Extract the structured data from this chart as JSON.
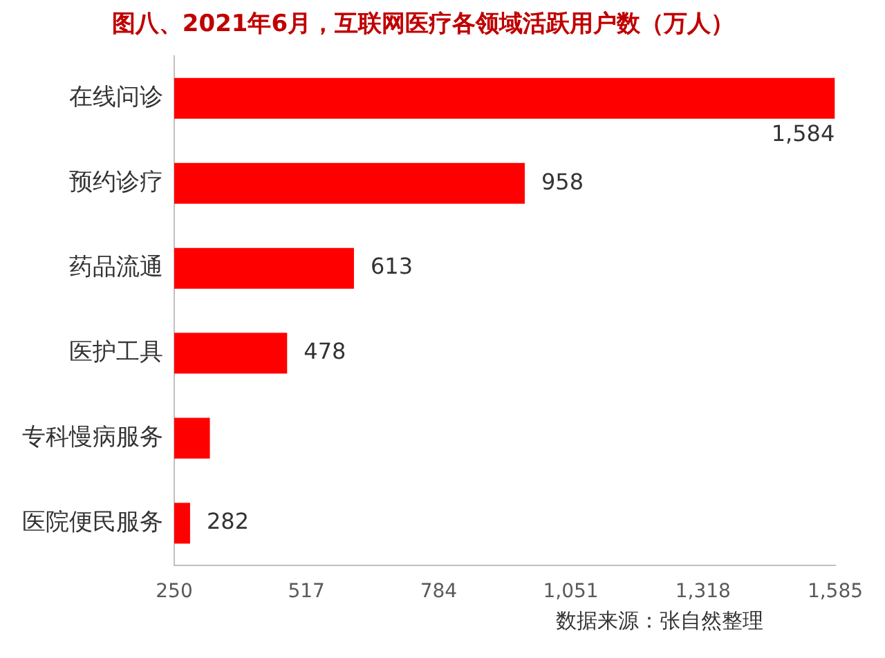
{
  "chart_data": {
    "type": "bar",
    "orientation": "horizontal",
    "title": "图八、2021年6月，互联网医疗各领域活跃用户数（万人）",
    "categories": [
      "在线问诊",
      "预约诊疗",
      "药品流通",
      "医护工具",
      "专科慢病服务",
      "医院便民服务"
    ],
    "values": [
      1584,
      958,
      613,
      478,
      322,
      282
    ],
    "color": "#ff0000",
    "value_labels": [
      "1,584",
      "958",
      "613",
      "478",
      null,
      "282"
    ],
    "xlim": [
      250,
      1585
    ],
    "xticks": [
      250,
      517,
      784,
      {
        "value": 1051,
        "label": "1,051"
      },
      {
        "value": 1318,
        "label": "1,318"
      },
      {
        "value": 1585,
        "label": "1,585"
      }
    ],
    "grid": false,
    "legend": false,
    "annotations": [
      "数据来源：张自然整理"
    ]
  }
}
